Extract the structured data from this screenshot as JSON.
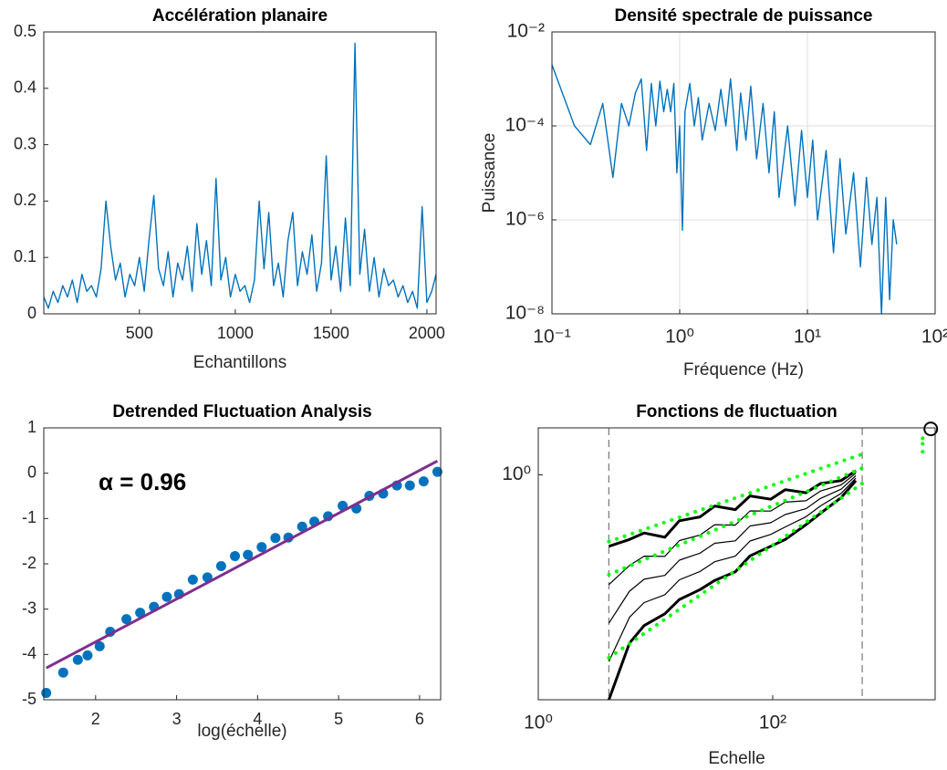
{
  "chart_data": [
    {
      "type": "line",
      "title": "Accélération planaire",
      "xlabel": "Echantillons",
      "color": "#0072bd",
      "xlim": [
        1,
        2048
      ],
      "ylim": [
        0,
        0.5
      ],
      "xticks": [
        500,
        1000,
        1500,
        2000
      ],
      "yticks": [
        0,
        0.1,
        0.2,
        0.3,
        0.4,
        0.5
      ],
      "x": [
        1,
        25,
        50,
        75,
        100,
        125,
        150,
        175,
        200,
        225,
        250,
        275,
        300,
        325,
        350,
        375,
        400,
        425,
        450,
        475,
        500,
        525,
        550,
        575,
        600,
        625,
        650,
        675,
        700,
        725,
        750,
        775,
        800,
        825,
        850,
        875,
        900,
        925,
        950,
        975,
        1000,
        1025,
        1050,
        1075,
        1100,
        1125,
        1150,
        1175,
        1200,
        1225,
        1250,
        1275,
        1300,
        1325,
        1350,
        1375,
        1400,
        1425,
        1450,
        1475,
        1500,
        1525,
        1550,
        1575,
        1600,
        1625,
        1650,
        1675,
        1700,
        1725,
        1750,
        1775,
        1800,
        1825,
        1850,
        1875,
        1900,
        1925,
        1950,
        1975,
        2000,
        2025,
        2048
      ],
      "values": [
        0.03,
        0.01,
        0.04,
        0.02,
        0.05,
        0.03,
        0.06,
        0.02,
        0.07,
        0.04,
        0.05,
        0.03,
        0.08,
        0.2,
        0.12,
        0.06,
        0.09,
        0.03,
        0.07,
        0.05,
        0.1,
        0.04,
        0.13,
        0.21,
        0.08,
        0.05,
        0.11,
        0.03,
        0.09,
        0.06,
        0.12,
        0.04,
        0.16,
        0.07,
        0.13,
        0.05,
        0.24,
        0.06,
        0.1,
        0.03,
        0.07,
        0.04,
        0.05,
        0.02,
        0.06,
        0.2,
        0.08,
        0.18,
        0.05,
        0.09,
        0.03,
        0.13,
        0.18,
        0.05,
        0.11,
        0.07,
        0.14,
        0.04,
        0.09,
        0.28,
        0.06,
        0.12,
        0.04,
        0.17,
        0.05,
        0.48,
        0.07,
        0.15,
        0.04,
        0.1,
        0.03,
        0.08,
        0.05,
        0.06,
        0.03,
        0.05,
        0.02,
        0.04,
        0.01,
        0.19,
        0.02,
        0.04,
        0.07
      ]
    },
    {
      "type": "line",
      "title": "Densité spectrale de puissance",
      "xlabel": "Fréquence (Hz)",
      "ylabel": "Puissance",
      "color": "#0072bd",
      "xscale": "log",
      "yscale": "log",
      "grid": true,
      "xlim": [
        0.1,
        100
      ],
      "ylim": [
        1e-08,
        0.01
      ],
      "xticks": [
        {
          "value": 0.1,
          "label": "10⁻¹"
        },
        {
          "value": 1,
          "label": "10⁰"
        },
        {
          "value": 10,
          "label": "10¹"
        },
        {
          "value": 100,
          "label": "10²"
        }
      ],
      "yticks": [
        {
          "value": 1e-08,
          "label": "10⁻⁸"
        },
        {
          "value": 1e-06,
          "label": "10⁻⁶"
        },
        {
          "value": 0.0001,
          "label": "10⁻⁴"
        },
        {
          "value": 0.01,
          "label": "10⁻²"
        }
      ],
      "x": [
        0.1,
        0.15,
        0.2,
        0.25,
        0.3,
        0.35,
        0.4,
        0.45,
        0.5,
        0.55,
        0.6,
        0.65,
        0.7,
        0.75,
        0.8,
        0.85,
        0.9,
        0.95,
        1.0,
        1.05,
        1.1,
        1.2,
        1.3,
        1.4,
        1.5,
        1.7,
        1.9,
        2.1,
        2.3,
        2.5,
        2.8,
        3.0,
        3.3,
        3.6,
        4,
        4.5,
        5,
        5.5,
        6,
        7,
        8,
        9,
        10,
        11,
        12,
        14,
        16,
        18,
        20,
        23,
        26,
        29,
        32,
        35,
        38,
        41,
        44,
        47,
        50
      ],
      "values": [
        0.002,
        0.0001,
        4e-05,
        0.0003,
        8e-06,
        0.0003,
        0.0001,
        0.0005,
        0.001,
        3e-05,
        0.0008,
        0.0001,
        0.0009,
        0.0002,
        0.0006,
        0.0002,
        0.0008,
        1e-05,
        0.0001,
        6e-07,
        0.0002,
        0.0008,
        0.0001,
        0.0004,
        5e-05,
        0.0003,
        8e-05,
        0.0006,
        0.0001,
        0.001,
        3e-05,
        0.0005,
        5e-05,
        0.0007,
        2e-05,
        0.0003,
        1e-05,
        0.0002,
        3e-06,
        0.0001,
        2e-06,
        8e-05,
        3e-06,
        5e-05,
        1e-06,
        3e-05,
        2e-07,
        2e-05,
        5e-07,
        1e-05,
        1e-07,
        8e-06,
        3e-07,
        3e-06,
        1e-08,
        3e-06,
        2e-08,
        1e-06,
        3e-07
      ]
    },
    {
      "type": "scatter",
      "title": "Detrended Fluctuation Analysis",
      "xlabel": "log(échelle)",
      "annotation": "α = 0.96",
      "color": "#0072bd",
      "xlim": [
        1.36,
        6.26
      ],
      "ylim": [
        -5,
        1
      ],
      "xticks": [
        2,
        3,
        4,
        5,
        6
      ],
      "yticks": [
        -5,
        -4,
        -3,
        -2,
        -1,
        0,
        1
      ],
      "x": [
        1.39,
        1.6,
        1.78,
        1.9,
        2.05,
        2.18,
        2.38,
        2.55,
        2.72,
        2.88,
        3.03,
        3.2,
        3.38,
        3.55,
        3.72,
        3.88,
        4.05,
        4.22,
        4.38,
        4.55,
        4.7,
        4.87,
        5.05,
        5.22,
        5.38,
        5.55,
        5.72,
        5.88,
        6.05,
        6.22
      ],
      "values": [
        -4.85,
        -4.4,
        -4.12,
        -4.02,
        -3.82,
        -3.5,
        -3.22,
        -3.08,
        -2.95,
        -2.73,
        -2.67,
        -2.35,
        -2.3,
        -2.05,
        -1.83,
        -1.8,
        -1.63,
        -1.43,
        -1.42,
        -1.18,
        -1.07,
        -0.95,
        -0.72,
        -0.78,
        -0.5,
        -0.45,
        -0.27,
        -0.27,
        -0.18,
        0.03
      ],
      "fit": {
        "color": "#7e2f8e",
        "x": [
          1.39,
          6.22
        ],
        "values": [
          -4.3,
          0.27
        ]
      }
    },
    {
      "type": "line",
      "title": "Fonctions de fluctuation",
      "xlabel": "Echelle",
      "xscale": "log",
      "yscale": "log",
      "xlim": [
        1,
        2430
      ],
      "ylim": [
        0.2,
        1.4
      ],
      "xticks": [
        {
          "value": 1,
          "label": "10⁰"
        },
        {
          "value": 100,
          "label": "10²"
        }
      ],
      "yticks": [
        {
          "value": 1,
          "label": "10⁰"
        }
      ],
      "x": [
        4,
        6,
        8,
        12,
        16,
        24,
        32,
        48,
        64,
        96,
        128,
        192,
        256,
        384,
        512
      ],
      "series": [
        {
          "color": "#000000",
          "values": [
            0.2,
            0.3,
            0.34,
            0.37,
            0.41,
            0.44,
            0.47,
            0.5,
            0.56,
            0.6,
            0.63,
            0.7,
            0.76,
            0.85,
            0.96
          ]
        },
        {
          "color": "#000000",
          "values": [
            0.263,
            0.361,
            0.401,
            0.424,
            0.472,
            0.501,
            0.537,
            0.559,
            0.623,
            0.653,
            0.689,
            0.741,
            0.801,
            0.876,
            0.977
          ]
        },
        {
          "color": "#000000",
          "values": [
            0.346,
            0.435,
            0.474,
            0.487,
            0.543,
            0.571,
            0.613,
            0.624,
            0.694,
            0.71,
            0.753,
            0.785,
            0.845,
            0.903,
            0.994
          ]
        },
        {
          "color": "#000000",
          "values": [
            0.456,
            0.523,
            0.559,
            0.558,
            0.625,
            0.65,
            0.7,
            0.698,
            0.773,
            0.772,
            0.823,
            0.831,
            0.891,
            0.931,
            1.012
          ]
        },
        {
          "color": "#000000",
          "values": [
            0.6,
            0.63,
            0.66,
            0.64,
            0.72,
            0.74,
            0.8,
            0.78,
            0.86,
            0.84,
            0.9,
            0.88,
            0.94,
            0.96,
            1.03
          ]
        }
      ],
      "fit_color": "#00ff00",
      "fits": [
        {
          "x": [
            4,
            580
          ],
          "values": [
            0.62,
            1.16
          ]
        },
        {
          "x": [
            4,
            580
          ],
          "values": [
            0.49,
            1.05
          ]
        },
        {
          "x": [
            4,
            580
          ],
          "values": [
            0.27,
            0.94
          ]
        }
      ],
      "markers": {
        "x": [
          1900,
          1900,
          1900
        ],
        "values": [
          1.3,
          1.25,
          1.18
        ]
      },
      "highlight": {
        "x": 2230,
        "value": 1.39
      },
      "vlines": [
        4,
        580
      ]
    }
  ]
}
